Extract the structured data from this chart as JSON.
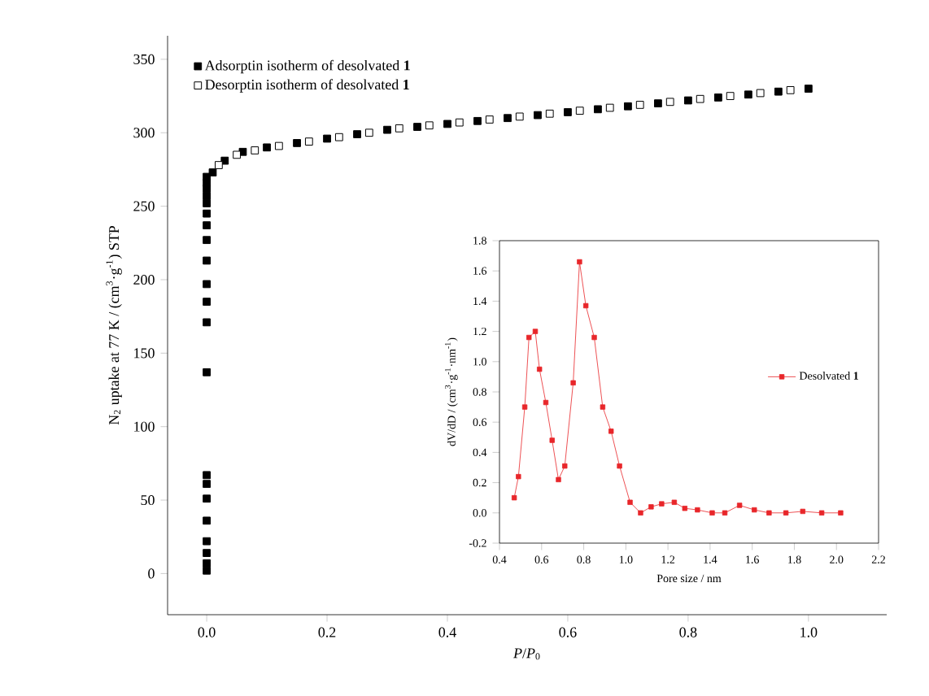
{
  "chart_data": [
    {
      "type": "scatter",
      "xlabel": "*P*/*P*$_{0}$",
      "ylabel": "N$_{2}$ uptake at 77 K / (cm$^{3}$·g$^{-1}$) STP",
      "xlim": [
        -0.065,
        1.13
      ],
      "ylim": [
        -28,
        366
      ],
      "xticks": [
        {
          "value": 0,
          "label": "0.0"
        },
        {
          "value": 0.2,
          "label": "0.2"
        },
        {
          "value": 0.4,
          "label": "0.4"
        },
        {
          "value": 0.6,
          "label": "0.6"
        },
        {
          "value": 0.8,
          "label": "0.8"
        },
        {
          "value": 1,
          "label": "1.0"
        }
      ],
      "yticks": [
        0,
        50,
        100,
        150,
        200,
        250,
        300,
        350
      ],
      "marker": "square",
      "legend": "top left",
      "series": [
        {
          "name": "Adsorptin isotherm of desolvated **1**",
          "color": "#000000",
          "x": [
            0,
            0,
            0,
            0,
            0,
            0,
            0,
            0,
            0,
            0,
            0,
            0,
            0,
            0,
            0,
            0,
            0,
            0,
            0,
            0,
            0,
            0.01,
            0.03,
            0.06,
            0.1,
            0.15,
            0.2,
            0.25,
            0.3,
            0.35,
            0.4,
            0.45,
            0.5,
            0.55,
            0.6,
            0.65,
            0.7,
            0.75,
            0.8,
            0.85,
            0.9,
            0.95,
            1.0
          ],
          "values": [
            2,
            7,
            14,
            22,
            36,
            51,
            61,
            67,
            137,
            171,
            185,
            197,
            213,
            227,
            237,
            245,
            252,
            257,
            262,
            266,
            270,
            273,
            281,
            287,
            290,
            293,
            296,
            299,
            302,
            304,
            306,
            308,
            310,
            312,
            314,
            316,
            318,
            320,
            322,
            324,
            326,
            328,
            330
          ]
        },
        {
          "name": "Desorptin isotherm of desolvated **1**",
          "color": "#000000",
          "x": [
            0.02,
            0.05,
            0.08,
            0.12,
            0.17,
            0.22,
            0.27,
            0.32,
            0.37,
            0.42,
            0.47,
            0.52,
            0.57,
            0.62,
            0.67,
            0.72,
            0.77,
            0.82,
            0.87,
            0.92,
            0.97
          ],
          "values": [
            278,
            285,
            288,
            291,
            294,
            297,
            300,
            303,
            305,
            307,
            309,
            311,
            313,
            315,
            317,
            319,
            321,
            323,
            325,
            327,
            329
          ]
        }
      ]
    },
    {
      "type": "line",
      "xlabel": "Pore size / nm",
      "ylabel": "dV/dD / (cm$^{3}$·g$^{-1}$·nm$^{-1}$)",
      "xlim": [
        0.4,
        2.2
      ],
      "ylim": [
        -0.2,
        1.8
      ],
      "xticks": [
        {
          "value": 0.4,
          "label": "0.4"
        },
        {
          "value": 0.6,
          "label": "0.6"
        },
        {
          "value": 0.8,
          "label": "0.8"
        },
        {
          "value": 1,
          "label": "1.0"
        },
        {
          "value": 1.2,
          "label": "1.2"
        },
        {
          "value": 1.4,
          "label": "1.4"
        },
        {
          "value": 1.6,
          "label": "1.6"
        },
        {
          "value": 1.8,
          "label": "1.8"
        },
        {
          "value": 2,
          "label": "2.0"
        },
        {
          "value": 2.2,
          "label": "2.2"
        }
      ],
      "yticks": [
        {
          "value": -0.2,
          "label": "-0.2"
        },
        {
          "value": 0,
          "label": "0.0"
        },
        {
          "value": 0.2,
          "label": "0.2"
        },
        {
          "value": 0.4,
          "label": "0.4"
        },
        {
          "value": 0.6,
          "label": "0.6"
        },
        {
          "value": 0.8,
          "label": "0.8"
        },
        {
          "value": 1,
          "label": "1.0"
        },
        {
          "value": 1.2,
          "label": "1.2"
        },
        {
          "value": 1.4,
          "label": "1.4"
        },
        {
          "value": 1.6,
          "label": "1.6"
        },
        {
          "value": 1.8,
          "label": "1.8"
        }
      ],
      "marker": "square",
      "line_style": "solid",
      "legend": "right",
      "series": [
        {
          "name": "Desolvated **1**",
          "color": "#e8262a",
          "x": [
            0.47,
            0.49,
            0.52,
            0.54,
            0.57,
            0.59,
            0.62,
            0.65,
            0.68,
            0.71,
            0.75,
            0.78,
            0.81,
            0.85,
            0.89,
            0.93,
            0.97,
            1.02,
            1.07,
            1.12,
            1.17,
            1.23,
            1.28,
            1.34,
            1.41,
            1.47,
            1.54,
            1.61,
            1.68,
            1.76,
            1.84,
            1.93,
            2.02
          ],
          "values": [
            0.1,
            0.24,
            0.7,
            1.16,
            1.2,
            0.95,
            0.73,
            0.48,
            0.22,
            0.31,
            0.86,
            1.66,
            1.37,
            1.16,
            0.7,
            0.54,
            0.31,
            0.07,
            0.0,
            0.04,
            0.06,
            0.07,
            0.03,
            0.02,
            0.0,
            0.0,
            0.05,
            0.02,
            0.0,
            0.0,
            0.01,
            0.0,
            0.0
          ]
        }
      ]
    }
  ]
}
